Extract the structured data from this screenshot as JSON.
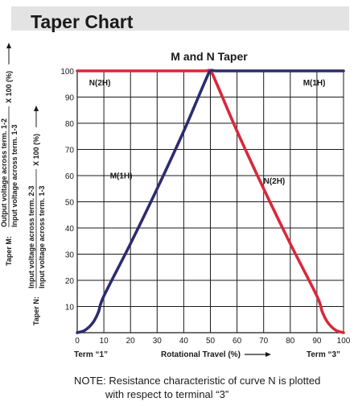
{
  "header": {
    "title": "Taper Chart"
  },
  "chart_data": {
    "type": "line",
    "title": "M and N Taper",
    "xlabel": "Rotational Travel (%)",
    "x_ticks": [
      0,
      10,
      20,
      30,
      40,
      50,
      60,
      70,
      80,
      90,
      100
    ],
    "y_ticks": [
      10,
      20,
      30,
      40,
      50,
      60,
      70,
      80,
      90,
      100
    ],
    "xlim": [
      0,
      100
    ],
    "ylim": [
      0,
      100
    ],
    "grid": true,
    "x_end_labels": {
      "left": "Term “1”",
      "right": "Term “3”"
    },
    "ylabel_m": {
      "prefix": "Taper M:",
      "numerator": "Output voltage across term. 1-2",
      "denominator": "Input voltage across term. 1-3",
      "multiplier": "X 100 (%)"
    },
    "ylabel_n": {
      "prefix": "Taper N:",
      "numerator": "Input voltage across term. 2-3",
      "denominator": "Input voltage across term. 1-3",
      "multiplier": "X 100 (%)"
    },
    "series": [
      {
        "color": "#2b2d6e",
        "x": [
          0,
          3,
          6,
          8,
          10,
          20,
          30,
          40,
          48,
          50,
          52,
          60,
          70,
          80,
          90,
          100
        ],
        "y": [
          0,
          1,
          4,
          8,
          14,
          34,
          55,
          77,
          96,
          100,
          100,
          100,
          100,
          100,
          100,
          100
        ]
      },
      {
        "color": "#d8283a",
        "x": [
          0,
          10,
          20,
          30,
          40,
          48,
          50,
          52,
          60,
          70,
          80,
          90,
          92,
          94,
          97,
          100
        ],
        "y": [
          100,
          100,
          100,
          100,
          100,
          100,
          100,
          96,
          77,
          55,
          34,
          14,
          8,
          4,
          1,
          0
        ]
      }
    ],
    "annotations": [
      {
        "text": "N(2H)",
        "x": 8.5,
        "y": 94.5
      },
      {
        "text": "M(1H)",
        "x": 89,
        "y": 94.5
      },
      {
        "text": "M(1H)",
        "x": 16.5,
        "y": 59
      },
      {
        "text": "N(2H)",
        "x": 74,
        "y": 57
      }
    ]
  },
  "note": {
    "line1": "NOTE: Resistance characteristic of curve N is plotted",
    "line2": "with respect to terminal “3”"
  }
}
